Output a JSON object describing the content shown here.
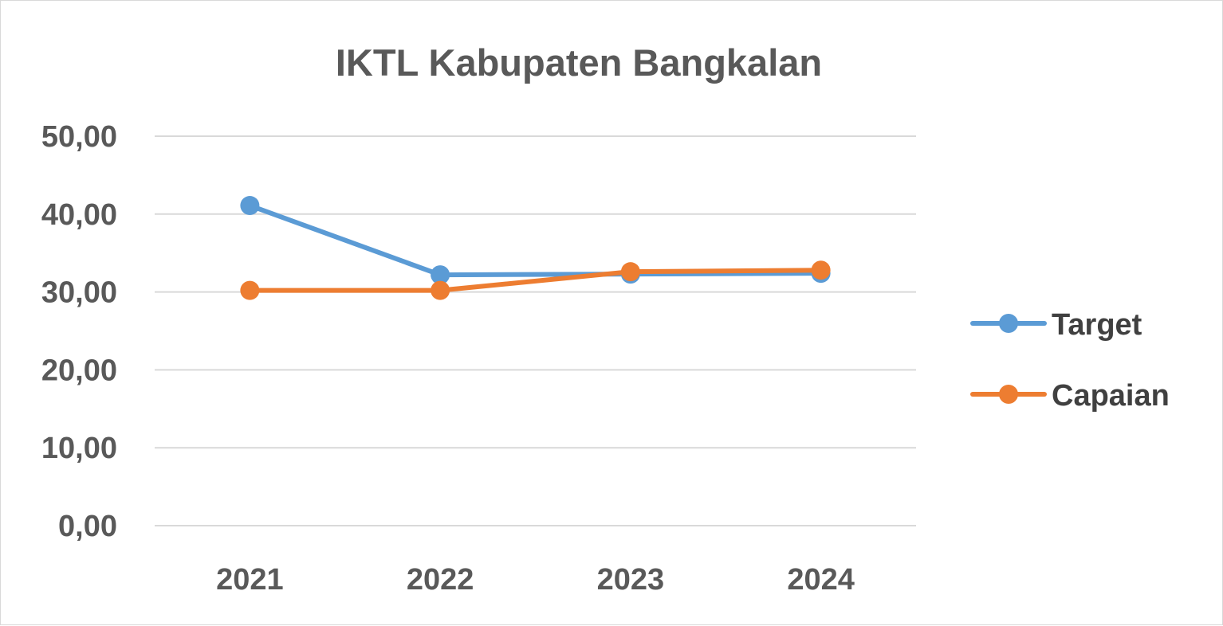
{
  "chart_data": {
    "type": "line",
    "title": "IKTL Kabupaten Bangkalan",
    "xlabel": "",
    "ylabel": "",
    "categories": [
      "2021",
      "2022",
      "2023",
      "2024"
    ],
    "ylim": [
      0,
      50
    ],
    "yticks": [
      0,
      10,
      20,
      30,
      40,
      50
    ],
    "ytick_labels": [
      "0,00",
      "10,00",
      "20,00",
      "30,00",
      "40,00",
      "50,00"
    ],
    "grid": true,
    "legend_position": "right",
    "series": [
      {
        "name": "Target",
        "color": "#5b9bd5",
        "values": [
          41.1,
          32.2,
          32.3,
          32.4
        ]
      },
      {
        "name": "Capaian",
        "color": "#ed7d31",
        "values": [
          30.2,
          30.2,
          32.6,
          32.8
        ]
      }
    ]
  }
}
